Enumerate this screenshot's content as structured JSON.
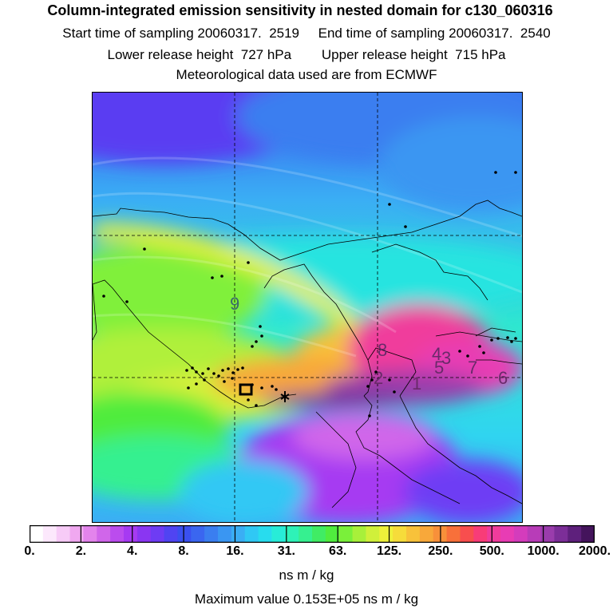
{
  "title": "Column-integrated emission sensitivity in nested domain for c130_060316",
  "start_time": "Start time of sampling 20060317.  2519",
  "end_time": "End time of sampling 20060317.  2540",
  "lower_release": "Lower release height  727 hPa",
  "upper_release": "Upper release height  715 hPa",
  "met_data": "Meteorological data used are from ECMWF",
  "colorbar": {
    "ticks": [
      "0.",
      "2.",
      "4.",
      "8.",
      "16.",
      "31.",
      "63.",
      "125.",
      "250.",
      "500.",
      "1000.",
      "2000."
    ],
    "units": "ns m / kg",
    "colors": [
      "#ffffff",
      "#fce8fc",
      "#f7cbf7",
      "#f0a8f0",
      "#e384ec",
      "#d066ea",
      "#bb4cee",
      "#a63af2",
      "#8a36f2",
      "#6e3cf4",
      "#5044f2",
      "#3a50f0",
      "#3a66f0",
      "#3a7ef0",
      "#3a96f2",
      "#3aaef4",
      "#30c8f4",
      "#28dcee",
      "#28ecd8",
      "#2ef2b8",
      "#36f090",
      "#40ec64",
      "#50ec3e",
      "#7af03a",
      "#a8f03a",
      "#d0f03a",
      "#eef03a",
      "#f6dc3a",
      "#f8c23a",
      "#f8a83a",
      "#f8903a",
      "#f8703a",
      "#f84e4e",
      "#f83c78",
      "#f03c9c",
      "#e83cb4",
      "#d43cbc",
      "#b83cb8",
      "#9a3cac",
      "#7c2e98",
      "#5e207c",
      "#44145c"
    ]
  },
  "max_value": "Maximum value  0.153E+05 ns m / kg",
  "map_labels": [
    "9",
    "8",
    "4",
    "3",
    "5",
    "7",
    "6",
    "1",
    "2"
  ]
}
